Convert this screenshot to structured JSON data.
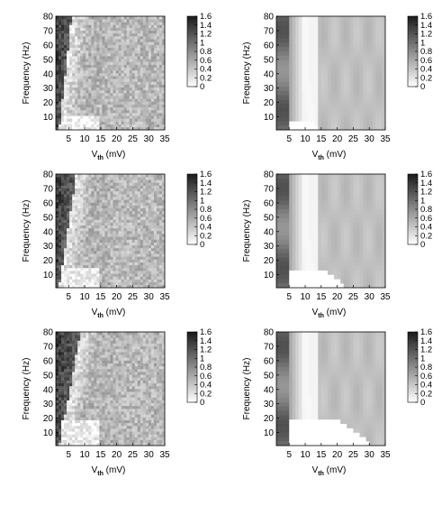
{
  "chart_data": [
    {
      "type": "heatmap",
      "panel": "row1-left",
      "pattern": "simulation",
      "row": 0,
      "col": 0,
      "xlabel": "V",
      "xlabel_sub": "th",
      "xlabel_unit": " (mV)",
      "ylabel": "Frequency (Hz)",
      "xlim": [
        1,
        35
      ],
      "ylim": [
        1,
        80
      ],
      "x_ticks": [
        5,
        10,
        15,
        20,
        25,
        30,
        35
      ],
      "y_ticks": [
        10,
        20,
        30,
        40,
        50,
        60,
        70,
        80
      ],
      "colorbar": {
        "min": 0,
        "max": 1.6,
        "ticks": [
          "1.6",
          "1.4",
          "1.2",
          "1",
          "0.8",
          "0.6",
          "0.4",
          "0.2",
          "0"
        ]
      }
    },
    {
      "type": "heatmap",
      "panel": "row1-right",
      "pattern": "theory",
      "row": 0,
      "col": 1,
      "xlabel": "V",
      "xlabel_sub": "th",
      "xlabel_unit": " (mV)",
      "ylabel": "Frequency (Hz)",
      "xlim": [
        1,
        35
      ],
      "ylim": [
        1,
        80
      ],
      "x_ticks": [
        5,
        10,
        15,
        20,
        25,
        30,
        35
      ],
      "y_ticks": [
        10,
        20,
        30,
        40,
        50,
        60,
        70,
        80
      ],
      "colorbar": {
        "min": 0,
        "max": 1.6,
        "ticks": [
          "1.6",
          "1.4",
          "1.2",
          "1",
          "0.8",
          "0.6",
          "0.4",
          "0.2",
          "0"
        ]
      }
    },
    {
      "type": "heatmap",
      "panel": "row2-left",
      "pattern": "simulation",
      "row": 1,
      "col": 0,
      "xlabel": "V",
      "xlabel_sub": "th",
      "xlabel_unit": " (mV)",
      "ylabel": "Frequency (Hz)",
      "xlim": [
        1,
        35
      ],
      "ylim": [
        1,
        80
      ],
      "x_ticks": [
        5,
        10,
        15,
        20,
        25,
        30,
        35
      ],
      "y_ticks": [
        10,
        20,
        30,
        40,
        50,
        60,
        70,
        80
      ],
      "colorbar": {
        "min": 0,
        "max": 1.6,
        "ticks": [
          "1.6",
          "1.4",
          "1.2",
          "1",
          "0.8",
          "0.6",
          "0.4",
          "0.2",
          "0"
        ]
      }
    },
    {
      "type": "heatmap",
      "panel": "row2-right",
      "pattern": "theory",
      "row": 1,
      "col": 1,
      "xlabel": "V",
      "xlabel_sub": "th",
      "xlabel_unit": " (mV)",
      "ylabel": "Frequency (Hz)",
      "xlim": [
        1,
        35
      ],
      "ylim": [
        1,
        80
      ],
      "x_ticks": [
        5,
        10,
        15,
        20,
        25,
        30,
        35
      ],
      "y_ticks": [
        10,
        20,
        30,
        40,
        50,
        60,
        70,
        80
      ],
      "colorbar": {
        "min": 0,
        "max": 1.6,
        "ticks": [
          "1.6",
          "1.4",
          "1.2",
          "1",
          "0.8",
          "0.6",
          "0.4",
          "0.2",
          "0"
        ]
      }
    },
    {
      "type": "heatmap",
      "panel": "row3-left",
      "pattern": "simulation",
      "row": 2,
      "col": 0,
      "xlabel": "V",
      "xlabel_sub": "th",
      "xlabel_unit": " (mV)",
      "ylabel": "Frequency (Hz)",
      "xlim": [
        1,
        35
      ],
      "ylim": [
        1,
        80
      ],
      "x_ticks": [
        5,
        10,
        15,
        20,
        25,
        30,
        35
      ],
      "y_ticks": [
        10,
        20,
        30,
        40,
        50,
        60,
        70,
        80
      ],
      "colorbar": {
        "min": 0,
        "max": 1.6,
        "ticks": [
          "1.6",
          "1.4",
          "1.2",
          "1",
          "0.8",
          "0.6",
          "0.4",
          "0.2",
          "0"
        ]
      }
    },
    {
      "type": "heatmap",
      "panel": "row3-right",
      "pattern": "theory",
      "row": 2,
      "col": 1,
      "xlabel": "V",
      "xlabel_sub": "th",
      "xlabel_unit": " (mV)",
      "ylabel": "Frequency (Hz)",
      "xlim": [
        1,
        35
      ],
      "ylim": [
        1,
        80
      ],
      "x_ticks": [
        5,
        10,
        15,
        20,
        25,
        30,
        35
      ],
      "y_ticks": [
        10,
        20,
        30,
        40,
        50,
        60,
        70,
        80
      ],
      "colorbar": {
        "min": 0,
        "max": 1.6,
        "ticks": [
          "1.6",
          "1.4",
          "1.2",
          "1",
          "0.8",
          "0.6",
          "0.4",
          "0.2",
          "0"
        ]
      }
    }
  ]
}
